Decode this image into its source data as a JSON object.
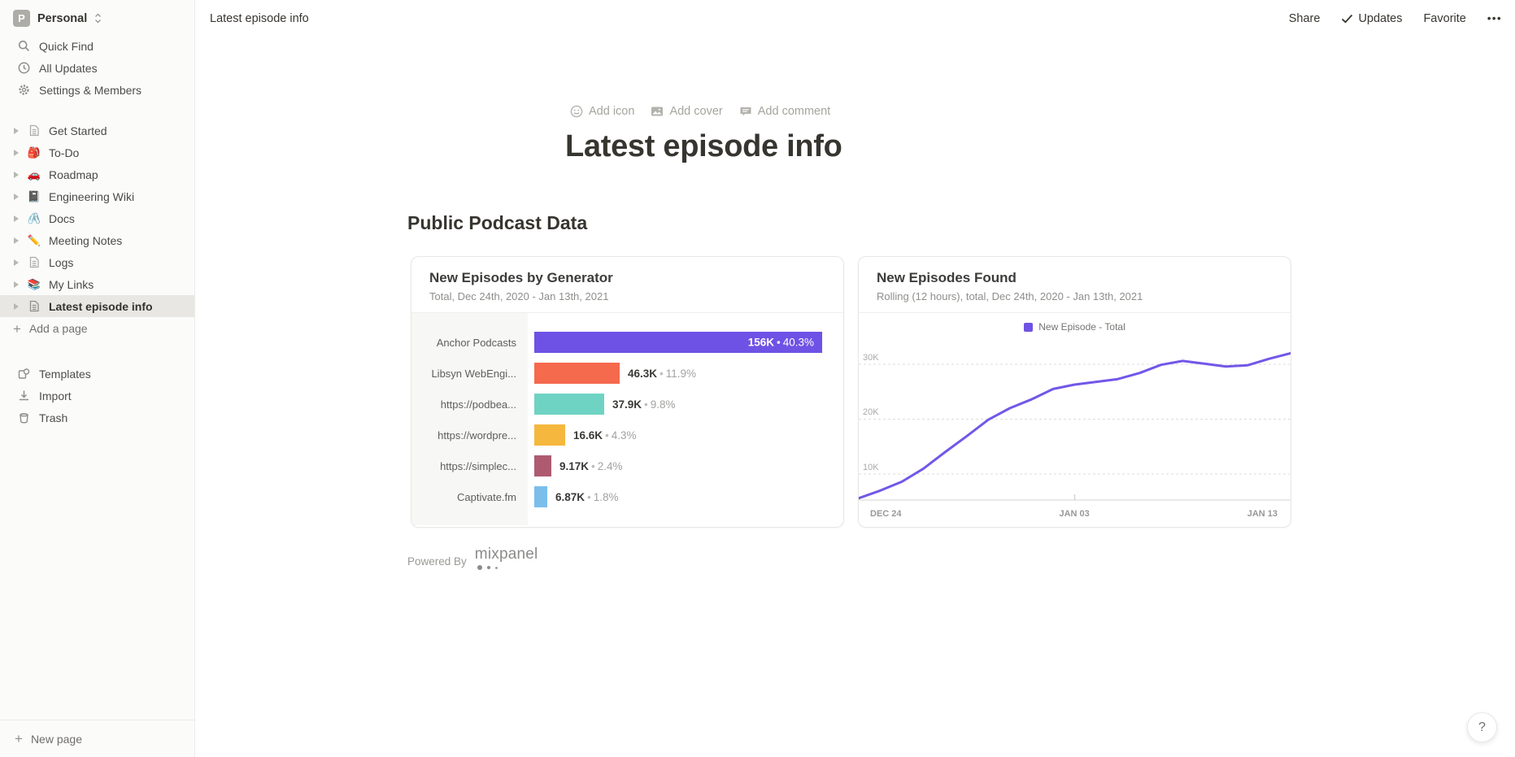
{
  "workspace": {
    "initial": "P",
    "name": "Personal"
  },
  "sidebar": {
    "top_items": [
      {
        "label": "Quick Find"
      },
      {
        "label": "All Updates"
      },
      {
        "label": "Settings & Members"
      }
    ],
    "pages": [
      {
        "icon": "page",
        "label": "Get Started"
      },
      {
        "icon": "🎒",
        "label": "To-Do"
      },
      {
        "icon": "🚗",
        "label": "Roadmap"
      },
      {
        "icon": "📓",
        "label": "Engineering Wiki"
      },
      {
        "icon": "🖇️",
        "label": "Docs"
      },
      {
        "icon": "✏️",
        "label": "Meeting Notes"
      },
      {
        "icon": "page",
        "label": "Logs"
      },
      {
        "icon": "📚",
        "label": "My Links"
      },
      {
        "icon": "page",
        "label": "Latest episode info"
      }
    ],
    "add_page_label": "Add a page",
    "bottom_items": [
      {
        "label": "Templates"
      },
      {
        "label": "Import"
      },
      {
        "label": "Trash"
      }
    ],
    "new_page_label": "New page"
  },
  "topbar": {
    "breadcrumb": "Latest episode info",
    "share_label": "Share",
    "updates_label": "Updates",
    "favorite_label": "Favorite",
    "more_label": "•••"
  },
  "page": {
    "actions": [
      {
        "label": "Add icon"
      },
      {
        "label": "Add cover"
      },
      {
        "label": "Add comment"
      }
    ],
    "title": "Latest episode info",
    "section_heading": "Public Podcast Data",
    "powered_by": "Powered By",
    "mixpanel_wordmark": "mixpanel"
  },
  "chart_data": [
    {
      "type": "bar",
      "orientation": "horizontal",
      "title": "New Episodes by Generator",
      "subtitle": "Total, Dec 24th, 2020 - Jan 13th, 2021",
      "bullet": "•",
      "categories": [
        "Anchor Podcasts",
        "Libsyn WebEngi...",
        "https://podbea...",
        "https://wordpre...",
        "https://simplec...",
        "Captivate.fm"
      ],
      "values": [
        156000,
        46300,
        37900,
        16600,
        9170,
        6870
      ],
      "value_labels": [
        "156K",
        "46.3K",
        "37.9K",
        "16.6K",
        "9.17K",
        "6.87K"
      ],
      "percent_labels": [
        "40.3%",
        "11.9%",
        "9.8%",
        "4.3%",
        "2.4%",
        "1.8%"
      ],
      "bar_colors": [
        "#6E52E5",
        "#F5694D",
        "#6FD3C3",
        "#F5B73D",
        "#AE5B72",
        "#7BBEEC"
      ]
    },
    {
      "type": "line",
      "title": "New Episodes Found",
      "subtitle": "Rolling (12 hours), total, Dec 24th, 2020 - Jan 13th, 2021",
      "legend": [
        "New Episode - Total"
      ],
      "line_color": "#7257E8",
      "grid": "dashed horizontal",
      "legend_position": "top center",
      "y_ticks": [
        "10K",
        "20K",
        "30K"
      ],
      "ylim": [
        0,
        35000
      ],
      "x_ticks": [
        "DEC 24",
        "JAN 03",
        "JAN 13"
      ],
      "values_k": [
        5.6,
        7.0,
        8.6,
        11.0,
        14.0,
        16.9,
        19.9,
        22.0,
        23.6,
        25.5,
        26.3,
        26.8,
        27.3,
        28.4,
        29.9,
        30.6,
        30.1,
        29.6,
        29.8,
        31.0,
        32.0
      ]
    }
  ],
  "help": {
    "label": "?"
  }
}
